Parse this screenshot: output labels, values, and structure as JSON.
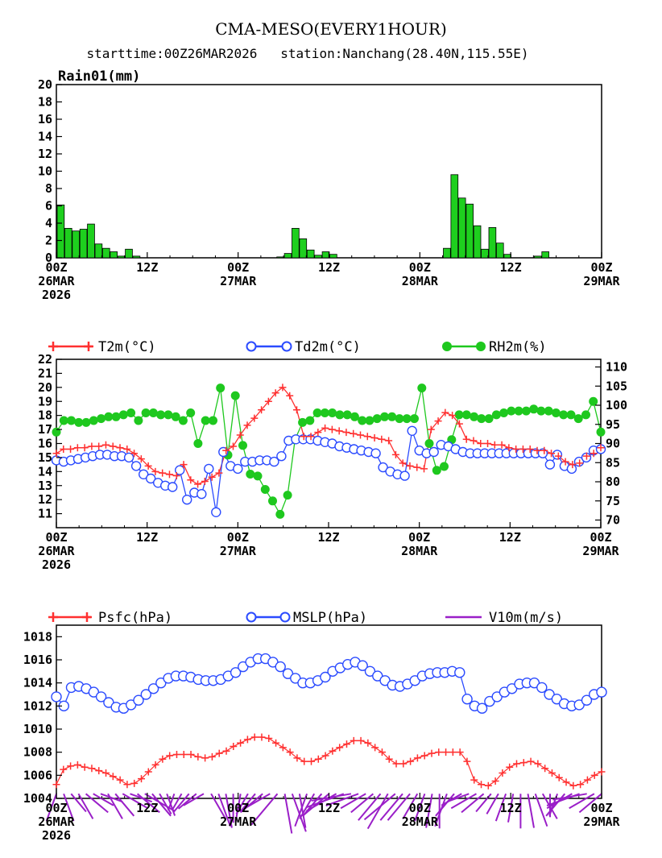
{
  "header": {
    "title": "CMA-MESO(EVERY1HOUR)",
    "subtitle": "starttime:00Z26MAR2026   station:Nanchang(28.40N,115.55E)"
  },
  "colors": {
    "rain": "#1ecf1e",
    "t2m": "#ff3030",
    "td2m": "#2b4bff",
    "rh2m": "#1ec81e",
    "psfc": "#ff3030",
    "mslp": "#2b4bff",
    "wind": "#9a1fc8"
  },
  "x_axis": {
    "tick_hours": [
      0,
      12,
      24,
      36,
      48,
      60,
      72
    ],
    "tick_labels": [
      [
        "00Z",
        "26MAR",
        "2026"
      ],
      [
        "12Z"
      ],
      [
        "00Z",
        "27MAR"
      ],
      [
        "12Z"
      ],
      [
        "00Z",
        "28MAR"
      ],
      [
        "12Z"
      ],
      [
        "00Z",
        "29MAR"
      ]
    ]
  },
  "chart_data": [
    {
      "type": "bar",
      "title": "Rain01(mm)",
      "ylim": [
        0,
        20
      ],
      "yticks": [
        0,
        2,
        4,
        6,
        8,
        10,
        12,
        14,
        16,
        18,
        20
      ],
      "x_hours": [
        0,
        1,
        2,
        3,
        4,
        5,
        6,
        7,
        8,
        9,
        10,
        11,
        12,
        13,
        14,
        15,
        16,
        17,
        18,
        19,
        20,
        21,
        22,
        23,
        24,
        25,
        26,
        27,
        28,
        29,
        30,
        31,
        32,
        33,
        34,
        35,
        36,
        37,
        38,
        39,
        40,
        41,
        42,
        43,
        44,
        45,
        46,
        47,
        48,
        49,
        50,
        51,
        52,
        53,
        54,
        55,
        56,
        57,
        58,
        59,
        60,
        61,
        62,
        63,
        64,
        65,
        66,
        67,
        68,
        69,
        70,
        71
      ],
      "values": [
        6.1,
        3.4,
        3.1,
        3.3,
        3.9,
        1.6,
        1.1,
        0.7,
        0.2,
        1.0,
        0.2,
        0,
        0,
        0,
        0,
        0,
        0,
        0,
        0,
        0,
        0,
        0,
        0,
        0,
        0,
        0,
        0,
        0,
        0,
        0.1,
        0.5,
        3.4,
        2.2,
        0.9,
        0.3,
        0.7,
        0.4,
        0,
        0,
        0,
        0,
        0,
        0,
        0,
        0,
        0,
        0,
        0,
        0,
        0,
        0,
        1.1,
        9.6,
        6.9,
        6.2,
        3.7,
        1.0,
        3.5,
        1.7,
        0.4,
        0,
        0,
        0,
        0.2,
        0.7,
        0,
        0,
        0,
        0,
        0,
        0,
        0
      ]
    },
    {
      "type": "line",
      "ylim_left": [
        10,
        22
      ],
      "yticks_left": [
        11,
        12,
        13,
        14,
        15,
        16,
        17,
        18,
        19,
        20,
        21,
        22
      ],
      "ylim_right": [
        68,
        112
      ],
      "yticks_right": [
        70,
        75,
        80,
        85,
        90,
        95,
        100,
        105,
        110
      ],
      "series": [
        {
          "name": "T2m(°C)",
          "axis": "left",
          "marker": "plus",
          "values": [
            15.3,
            15.6,
            15.6,
            15.7,
            15.7,
            15.8,
            15.8,
            15.9,
            15.8,
            15.7,
            15.6,
            15.3,
            14.9,
            14.4,
            14.0,
            13.9,
            13.8,
            13.7,
            14.5,
            13.4,
            13.1,
            13.3,
            13.6,
            13.9,
            15.5,
            15.8,
            16.6,
            17.3,
            17.8,
            18.4,
            19.0,
            19.6,
            20.0,
            19.4,
            18.4,
            16.5,
            16.5,
            16.8,
            17.1,
            17.0,
            16.9,
            16.8,
            16.7,
            16.6,
            16.5,
            16.4,
            16.3,
            16.2,
            15.2,
            14.6,
            14.4,
            14.3,
            14.2,
            17.0,
            17.6,
            18.2,
            18.0,
            17.4,
            16.3,
            16.2,
            16.0,
            16.0,
            15.9,
            15.9,
            15.7,
            15.6,
            15.6,
            15.6,
            15.5,
            15.5,
            15.3,
            15.1,
            14.7,
            14.5,
            14.6,
            15.1,
            15.3,
            15.7
          ]
        },
        {
          "name": "Td2m(°C)",
          "axis": "left",
          "marker": "circle",
          "values": [
            14.8,
            14.7,
            14.8,
            14.9,
            15.0,
            15.1,
            15.2,
            15.2,
            15.1,
            15.1,
            15.0,
            14.4,
            13.8,
            13.5,
            13.2,
            13.0,
            12.9,
            14.1,
            12.0,
            12.5,
            12.4,
            14.2,
            11.1,
            15.4,
            14.4,
            14.2,
            14.7,
            14.7,
            14.8,
            14.8,
            14.7,
            15.1,
            16.2,
            16.3,
            16.3,
            16.3,
            16.2,
            16.1,
            16.0,
            15.8,
            15.7,
            15.6,
            15.5,
            15.4,
            15.3,
            14.3,
            14.0,
            13.8,
            13.7,
            16.9,
            15.5,
            15.3,
            15.4,
            15.9,
            15.8,
            15.6,
            15.4,
            15.3,
            15.3,
            15.3,
            15.3,
            15.3,
            15.3,
            15.3,
            15.3,
            15.3,
            15.3,
            15.3,
            14.5,
            15.2,
            14.4,
            14.2,
            14.7,
            15.0,
            15.5,
            15.6
          ]
        },
        {
          "name": "RH2m(%)",
          "axis": "right",
          "marker": "dot",
          "values": [
            93,
            96,
            96,
            95.5,
            95.5,
            96,
            96.5,
            97,
            97,
            97.5,
            98,
            96,
            98,
            98,
            97.5,
            97.5,
            97,
            96,
            98,
            90,
            96,
            96,
            104.5,
            87,
            102.5,
            89.5,
            82,
            81.5,
            78,
            75,
            71.5,
            76.5,
            91,
            95.5,
            96,
            98,
            98,
            98,
            97.5,
            97.5,
            97,
            96,
            96,
            96.5,
            97,
            97,
            96.5,
            96.5,
            96.5,
            104.5,
            90,
            83,
            84,
            91,
            97.5,
            97.5,
            97,
            96.5,
            96.5,
            97.5,
            98,
            98.5,
            98.5,
            98.5,
            99,
            98.5,
            98.5,
            98,
            97.5,
            97.5,
            96.5,
            97.5,
            101,
            93
          ]
        }
      ]
    },
    {
      "type": "line",
      "ylim": [
        1004,
        1019
      ],
      "yticks": [
        1004,
        1006,
        1008,
        1010,
        1012,
        1014,
        1016,
        1018
      ],
      "series": [
        {
          "name": "Psfc(hPa)",
          "marker": "plus",
          "values": [
            1005.2,
            1006.5,
            1006.8,
            1006.9,
            1006.7,
            1006.6,
            1006.4,
            1006.2,
            1005.9,
            1005.6,
            1005.2,
            1005.3,
            1005.7,
            1006.3,
            1006.9,
            1007.4,
            1007.7,
            1007.8,
            1007.8,
            1007.8,
            1007.6,
            1007.5,
            1007.6,
            1007.9,
            1008.1,
            1008.5,
            1008.8,
            1009.1,
            1009.3,
            1009.3,
            1009.2,
            1008.8,
            1008.4,
            1008.0,
            1007.5,
            1007.2,
            1007.2,
            1007.4,
            1007.7,
            1008.1,
            1008.4,
            1008.7,
            1009.0,
            1009.0,
            1008.8,
            1008.4,
            1008.0,
            1007.4,
            1007.0,
            1007.0,
            1007.2,
            1007.5,
            1007.7,
            1007.9,
            1008.0,
            1008.0,
            1008.0,
            1008.0,
            1007.2,
            1005.6,
            1005.2,
            1005.1,
            1005.5,
            1006.2,
            1006.7,
            1007.0,
            1007.1,
            1007.2,
            1007.0,
            1006.6,
            1006.2,
            1005.8,
            1005.4,
            1005.1,
            1005.2,
            1005.6,
            1006.0,
            1006.3
          ]
        },
        {
          "name": "MSLP(hPa)",
          "marker": "circle",
          "values": [
            1012.8,
            1012.0,
            1013.6,
            1013.7,
            1013.5,
            1013.2,
            1012.8,
            1012.3,
            1011.9,
            1011.8,
            1012.1,
            1012.5,
            1013.0,
            1013.5,
            1014.0,
            1014.4,
            1014.6,
            1014.6,
            1014.5,
            1014.3,
            1014.2,
            1014.2,
            1014.3,
            1014.6,
            1014.9,
            1015.4,
            1015.8,
            1016.1,
            1016.1,
            1015.8,
            1015.4,
            1014.8,
            1014.4,
            1014.0,
            1014.0,
            1014.2,
            1014.5,
            1015.0,
            1015.3,
            1015.6,
            1015.8,
            1015.5,
            1015.0,
            1014.6,
            1014.2,
            1013.8,
            1013.7,
            1013.9,
            1014.2,
            1014.6,
            1014.8,
            1014.9,
            1014.9,
            1015.0,
            1014.9,
            1012.6,
            1012.0,
            1011.8,
            1012.4,
            1012.8,
            1013.2,
            1013.5,
            1013.9,
            1014.0,
            1014.0,
            1013.6,
            1013.0,
            1012.6,
            1012.2,
            1012.0,
            1012.1,
            1012.5,
            1013.0,
            1013.2
          ]
        },
        {
          "name": "V10m(m/s)",
          "type": "wind-barb",
          "dir_deg": [
            200,
            160,
            140,
            150,
            130,
            120,
            110,
            150,
            140,
            120,
            110,
            130,
            120,
            140,
            150,
            160,
            200,
            210,
            220,
            230,
            240,
            150,
            160,
            170,
            180,
            190,
            210,
            220,
            230,
            240,
            220,
            170,
            160,
            170,
            200,
            210,
            220,
            230,
            240,
            250,
            260,
            250,
            240,
            230,
            220,
            210,
            230,
            220,
            220,
            210,
            200,
            190,
            180,
            200,
            220,
            240,
            250,
            240,
            230,
            220,
            210,
            200,
            190,
            180,
            170,
            160,
            150,
            180,
            200,
            220,
            240,
            250,
            260,
            240,
            230
          ],
          "speed": [
            4,
            4,
            3,
            4,
            4,
            3,
            3,
            4,
            4,
            4,
            3,
            4,
            5,
            4,
            3,
            3,
            2,
            2,
            3,
            3,
            3,
            4,
            5,
            5,
            4,
            4,
            3,
            3,
            4,
            5,
            6,
            6,
            6,
            5,
            5,
            4,
            4,
            5,
            5,
            6,
            6,
            5,
            4,
            4,
            5,
            6,
            6,
            5,
            5,
            4,
            4,
            5,
            5,
            5,
            4,
            3,
            3,
            4,
            4,
            3,
            3,
            4,
            4,
            5,
            5,
            5,
            4,
            3,
            3,
            4,
            4,
            5,
            5,
            4,
            4
          ]
        }
      ]
    }
  ]
}
